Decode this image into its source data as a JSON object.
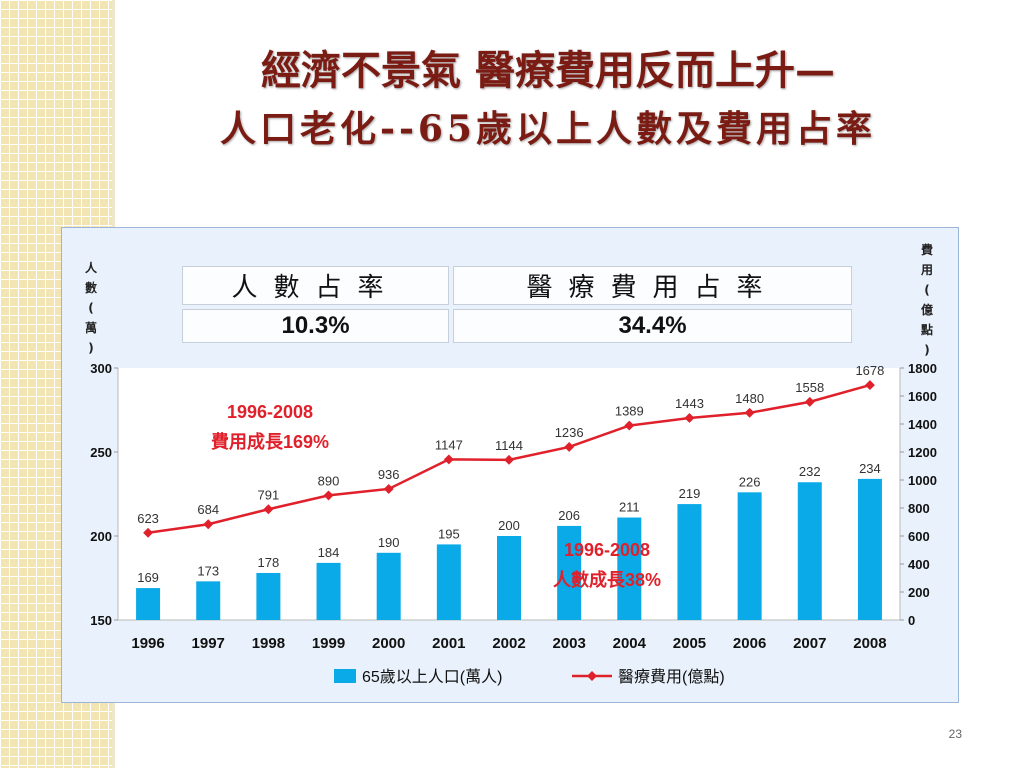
{
  "slide": {
    "title_line1": "經濟不景氣 醫療費用反而上升—",
    "title_line2": "人口老化--65歲以上人數及費用占率",
    "slide_number": "23"
  },
  "summary_table": {
    "headers": [
      "人數占率",
      "醫療費用占率"
    ],
    "values": [
      "10.3%",
      "34.4%"
    ]
  },
  "chart_data": {
    "type": "bar",
    "categories": [
      "1996",
      "1997",
      "1998",
      "1999",
      "2000",
      "2001",
      "2002",
      "2003",
      "2004",
      "2005",
      "2006",
      "2007",
      "2008"
    ],
    "series": [
      {
        "name": "65歲以上人口(萬人)",
        "type": "bar",
        "axis": "left",
        "color": "#0aa9e8",
        "values": [
          169,
          173,
          178,
          184,
          190,
          195,
          200,
          206,
          211,
          219,
          226,
          232,
          234
        ]
      },
      {
        "name": "醫療費用(億點)",
        "type": "line",
        "axis": "right",
        "color": "#e0202a",
        "values": [
          623,
          684,
          791,
          890,
          936,
          1147,
          1144,
          1236,
          1389,
          1443,
          1480,
          1558,
          1678
        ]
      }
    ],
    "y_left": {
      "label_chars": [
        "人",
        "數",
        "(",
        "萬",
        ")"
      ],
      "min": 150,
      "max": 300,
      "ticks": [
        150,
        200,
        250,
        300
      ]
    },
    "y_right": {
      "label_chars": [
        "費",
        "用",
        "(",
        "億",
        "點",
        ")"
      ],
      "min": 0,
      "max": 1800,
      "ticks": [
        0,
        200,
        400,
        600,
        800,
        1000,
        1200,
        1400,
        1600,
        1800
      ]
    },
    "annotations": [
      {
        "id": "cost",
        "line1": "1996-2008",
        "line2": "費用成長169%",
        "color": "#e0202a"
      },
      {
        "id": "people",
        "line1": "1996-2008",
        "line2": "人數成長38%",
        "color": "#e0202a"
      }
    ],
    "grid": false,
    "legend_position": "bottom"
  }
}
